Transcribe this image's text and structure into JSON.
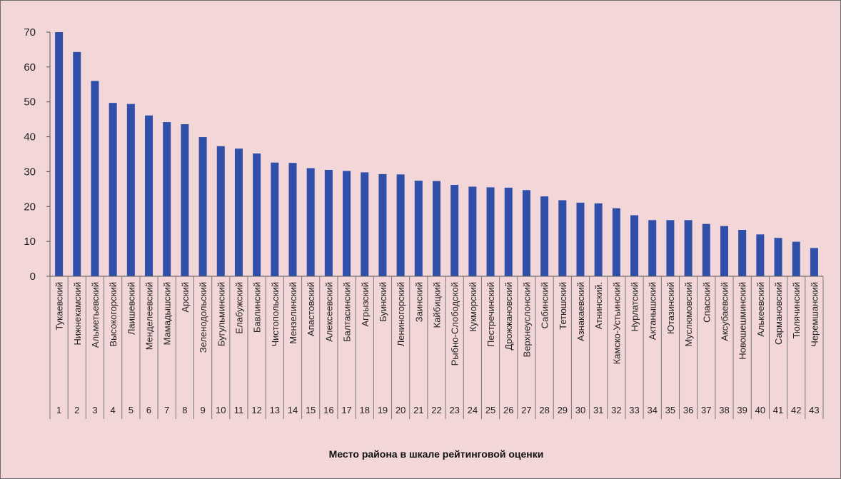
{
  "chart_data": {
    "type": "bar",
    "xlabel": "Место района в шкале рейтинговой оценки",
    "ylabel": "",
    "ylim": [
      0,
      70
    ],
    "yticks": [
      0,
      10,
      20,
      30,
      40,
      50,
      60,
      70
    ],
    "grid": false,
    "bar_color": "#2f4fa8",
    "categories": [
      "Тукаевский",
      "Нижнекамский",
      "Альметьевский",
      "Высокогорский",
      "Лаишевский",
      "Менделеевский",
      "Мамадышский",
      "Арский",
      "Зеленодольский",
      "Бугульминский",
      "Елабужский",
      "Бавлинский",
      "Чистопольский",
      "Мензелинский",
      "Апастовский",
      "Алексеевский",
      "Балтасинский",
      "Агрызский",
      "Буинский",
      "Лениногорский",
      "Заинский",
      "Кайбицкий",
      "Рыбно-Слободской",
      "Кукморский",
      "Пестречинский",
      "Дрожжановский",
      "Верхнеуслонский",
      "Сабинский",
      "Тетюшский",
      "Азнакаевский",
      "Атнинский.",
      "Камско-Устьинский",
      "Нурлатский",
      "Актанышский",
      "Ютазинский",
      "Муслюмовский",
      "Спасский",
      "Аксубаевский",
      "Новошешминский",
      "Алькеевский",
      "Сармановский",
      "Тюлячинский",
      "Черемшанский"
    ],
    "ranks": [
      "1",
      "2",
      "3",
      "4",
      "5",
      "6",
      "7",
      "8",
      "9",
      "10",
      "11",
      "12",
      "13",
      "14",
      "15",
      "16",
      "17",
      "18",
      "19",
      "20",
      "21",
      "22",
      "23",
      "24",
      "25",
      "26",
      "27",
      "28",
      "29",
      "30",
      "31",
      "32",
      "33",
      "34",
      "35",
      "36",
      "37",
      "38",
      "39",
      "40",
      "41",
      "42",
      "43"
    ],
    "values": [
      70,
      64.3,
      56,
      49.7,
      49.4,
      46.1,
      44.2,
      43.6,
      39.9,
      37.3,
      36.6,
      35.2,
      32.6,
      32.5,
      31,
      30.5,
      30.2,
      29.8,
      29.3,
      29.2,
      27.4,
      27.3,
      26.2,
      25.7,
      25.5,
      25.4,
      24.7,
      22.9,
      21.8,
      21.1,
      20.9,
      19.5,
      17.5,
      16.1,
      16.1,
      16.1,
      15,
      14.4,
      13.3,
      12,
      11,
      9.9,
      8.1
    ]
  }
}
